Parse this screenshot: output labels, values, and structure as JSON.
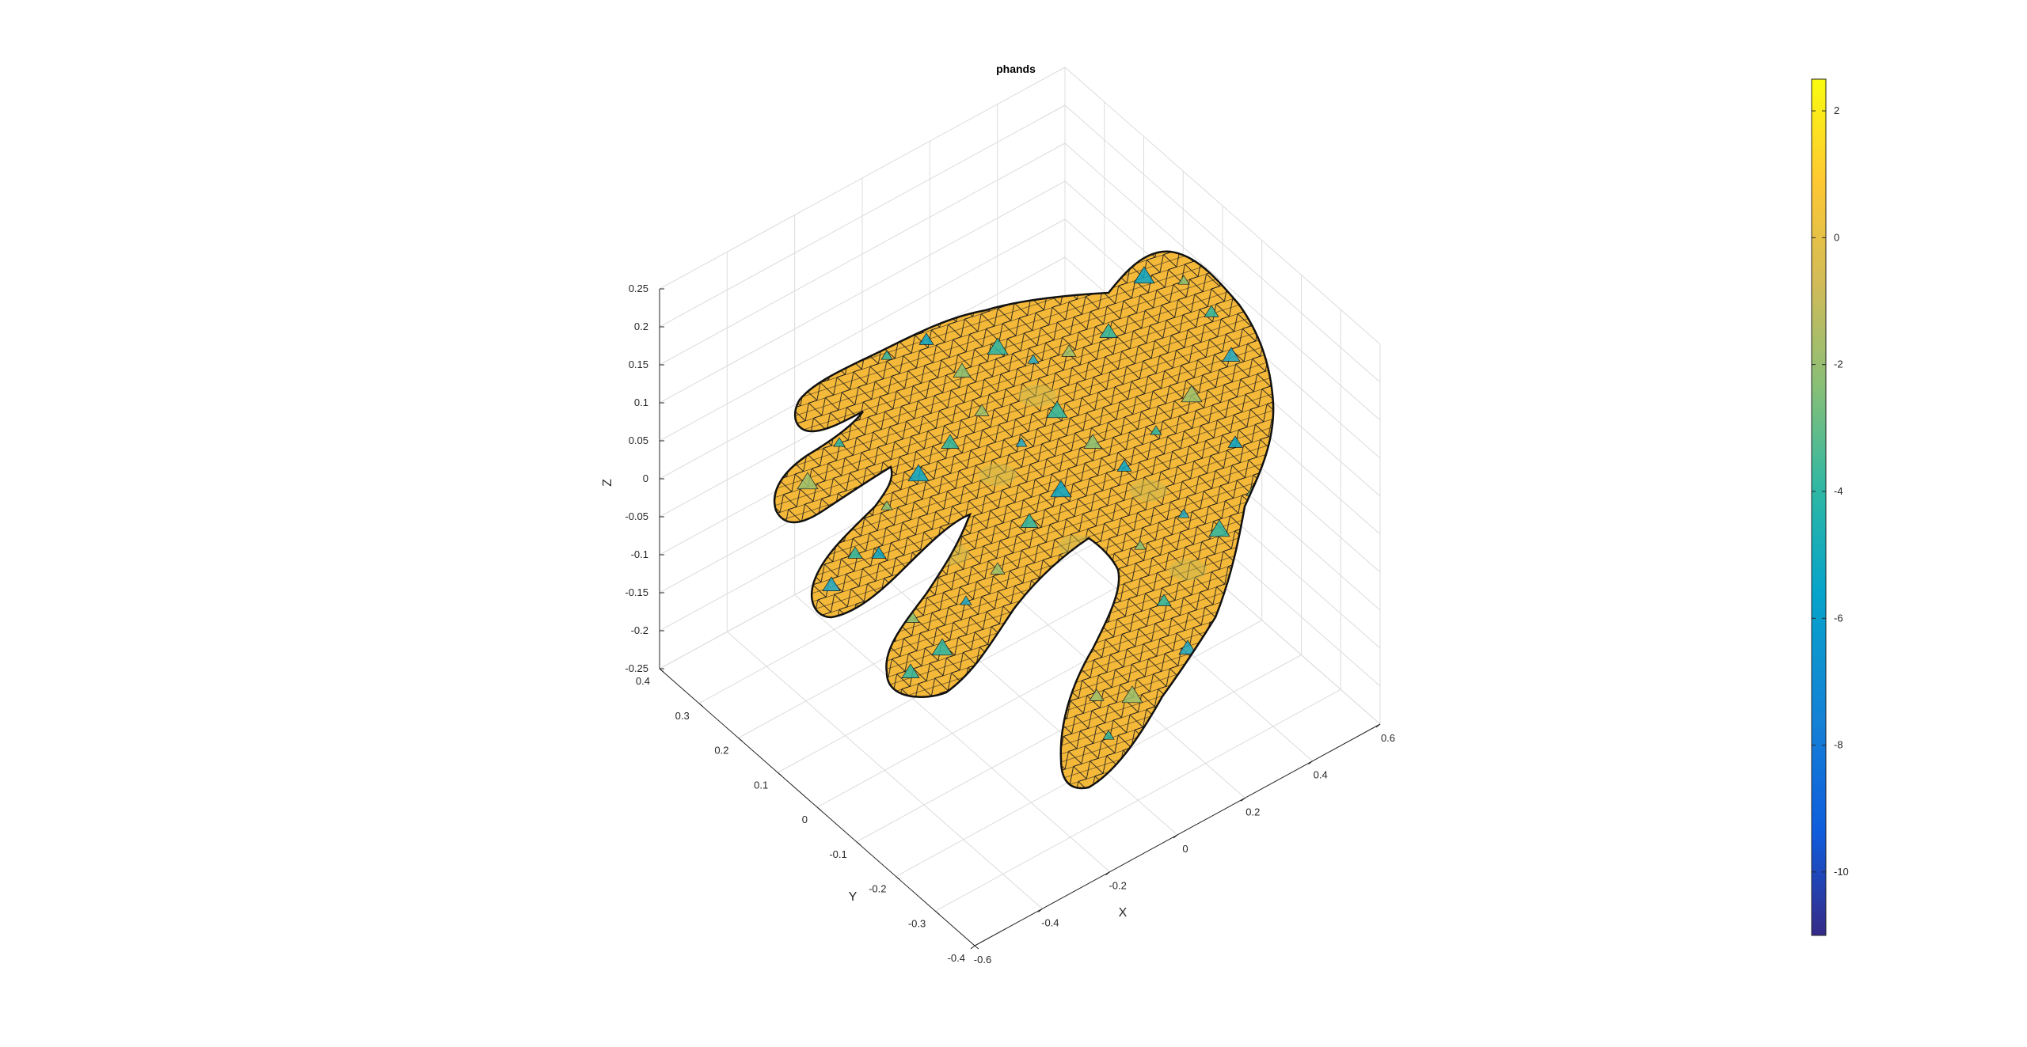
{
  "chart_data": {
    "type": "surface",
    "title": "phands",
    "xlabel": "X",
    "ylabel": "Y",
    "zlabel": "Z",
    "xlim": [
      -0.6,
      0.6
    ],
    "ylim": [
      -0.4,
      0.4
    ],
    "zlim": [
      -0.25,
      0.25
    ],
    "x_ticks": [
      "-0.6",
      "-0.4",
      "-0.2",
      "0",
      "0.2",
      "0.4",
      "0.6"
    ],
    "y_ticks": [
      "-0.4",
      "-0.3",
      "-0.2",
      "-0.1",
      "0",
      "0.1",
      "0.2",
      "0.3",
      "0.4"
    ],
    "z_ticks": [
      "-0.25",
      "-0.2",
      "-0.15",
      "-0.1",
      "-0.05",
      "0",
      "0.05",
      "0.1",
      "0.15",
      "0.2",
      "0.25"
    ],
    "grid": true,
    "surface_description": "triangulated hand mesh colored by scalar value, predominantly yellow-orange with scattered cyan/green patches",
    "colorbar": {
      "range": [
        -11,
        2.5
      ],
      "ticks": [
        "2",
        "0",
        "-2",
        "-4",
        "-6",
        "-8",
        "-10"
      ],
      "colormap": "parula",
      "colors": [
        "#352a87",
        "#0f5cdd",
        "#1481d6",
        "#06a4ca",
        "#2eb7a4",
        "#87bf77",
        "#d1bb59",
        "#fec832",
        "#f9fb0e"
      ]
    },
    "mesh_color": "#f5b93a",
    "edge_color": "#1a1a1a"
  }
}
